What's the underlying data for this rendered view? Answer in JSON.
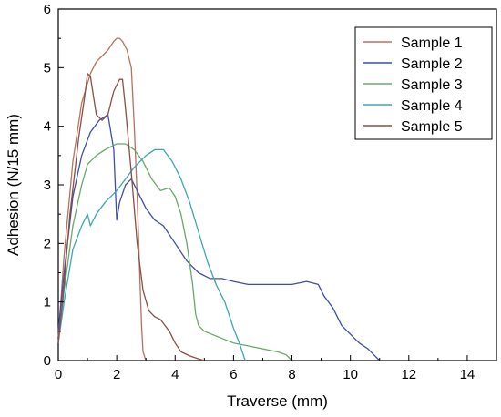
{
  "chart_data": {
    "type": "line",
    "title": "",
    "xlabel": "Traverse (mm)",
    "ylabel": "Adhesion (N/15 mm)",
    "xlim": [
      0,
      15
    ],
    "ylim": [
      0,
      6
    ],
    "xticks": [
      0,
      2,
      4,
      6,
      8,
      10,
      12,
      14
    ],
    "yticks": [
      0,
      1,
      2,
      3,
      4,
      5,
      6
    ],
    "grid": false,
    "legend_position": "top-right",
    "series": [
      {
        "name": "Sample 1",
        "color": "#b5735f",
        "x": [
          0,
          0.2,
          0.5,
          0.8,
          1.1,
          1.3,
          1.5,
          1.7,
          1.9,
          2.0,
          2.1,
          2.2,
          2.35,
          2.5,
          2.6,
          2.7,
          2.8,
          2.85,
          2.9,
          3.0
        ],
        "y": [
          0.4,
          1.8,
          3.4,
          4.4,
          4.9,
          5.1,
          5.2,
          5.3,
          5.45,
          5.5,
          5.5,
          5.45,
          5.3,
          5.0,
          4.0,
          2.8,
          1.3,
          0.6,
          0.15,
          0
        ]
      },
      {
        "name": "Sample 2",
        "color": "#3f4fa8",
        "x": [
          0,
          0.2,
          0.5,
          0.8,
          1.1,
          1.4,
          1.7,
          1.9,
          2.0,
          2.1,
          2.3,
          2.5,
          2.8,
          3.0,
          3.3,
          3.6,
          4.0,
          4.4,
          4.8,
          5.2,
          5.6,
          6.0,
          6.5,
          7.0,
          7.5,
          8.0,
          8.5,
          8.9,
          9.1,
          9.4,
          9.7,
          10.0,
          10.3,
          10.6,
          10.8,
          11.0
        ],
        "y": [
          0.5,
          1.5,
          2.8,
          3.5,
          3.9,
          4.1,
          4.2,
          3.6,
          2.4,
          2.7,
          3.0,
          3.1,
          2.8,
          2.6,
          2.4,
          2.3,
          2.0,
          1.7,
          1.5,
          1.4,
          1.4,
          1.35,
          1.3,
          1.3,
          1.3,
          1.3,
          1.35,
          1.3,
          1.1,
          0.9,
          0.6,
          0.45,
          0.3,
          0.2,
          0.1,
          0
        ]
      },
      {
        "name": "Sample 3",
        "color": "#6aa86a",
        "x": [
          0,
          0.2,
          0.5,
          0.8,
          1.0,
          1.3,
          1.6,
          2.0,
          2.3,
          2.6,
          2.9,
          3.2,
          3.5,
          3.8,
          4.0,
          4.2,
          4.4,
          4.6,
          4.7,
          4.8,
          5.0,
          5.5,
          6.0,
          6.5,
          7.0,
          7.5,
          7.8,
          8.0
        ],
        "y": [
          0.3,
          1.2,
          2.3,
          3.0,
          3.35,
          3.5,
          3.6,
          3.7,
          3.7,
          3.6,
          3.4,
          3.1,
          2.9,
          2.95,
          2.8,
          2.5,
          2.0,
          1.3,
          0.8,
          0.6,
          0.5,
          0.4,
          0.3,
          0.25,
          0.2,
          0.15,
          0.1,
          0
        ]
      },
      {
        "name": "Sample 4",
        "color": "#3fa5b5",
        "x": [
          0,
          0.2,
          0.5,
          0.8,
          1.0,
          1.1,
          1.3,
          1.6,
          2.0,
          2.3,
          2.6,
          3.0,
          3.3,
          3.6,
          3.9,
          4.2,
          4.5,
          4.8,
          5.1,
          5.4,
          5.7,
          6.0,
          6.2,
          6.3,
          6.4
        ],
        "y": [
          0.3,
          1.0,
          1.9,
          2.3,
          2.5,
          2.3,
          2.5,
          2.7,
          2.9,
          3.1,
          3.3,
          3.5,
          3.6,
          3.6,
          3.4,
          3.1,
          2.7,
          2.2,
          1.7,
          1.3,
          1.0,
          0.55,
          0.3,
          0.15,
          0
        ]
      },
      {
        "name": "Sample 5",
        "color": "#8a4f46",
        "x": [
          0,
          0.2,
          0.4,
          0.7,
          0.9,
          1.0,
          1.1,
          1.3,
          1.5,
          1.7,
          1.8,
          1.9,
          2.0,
          2.1,
          2.2,
          2.3,
          2.5,
          2.7,
          2.9,
          3.1,
          3.3,
          3.5,
          3.8,
          4.0,
          4.2,
          4.5,
          4.8,
          5.0
        ],
        "y": [
          0.3,
          1.3,
          2.5,
          3.8,
          4.5,
          4.9,
          4.85,
          4.2,
          4.1,
          4.2,
          4.4,
          4.6,
          4.7,
          4.8,
          4.8,
          4.3,
          3.2,
          2.0,
          1.2,
          0.85,
          0.75,
          0.7,
          0.5,
          0.3,
          0.15,
          0.08,
          0.03,
          0
        ]
      }
    ]
  }
}
